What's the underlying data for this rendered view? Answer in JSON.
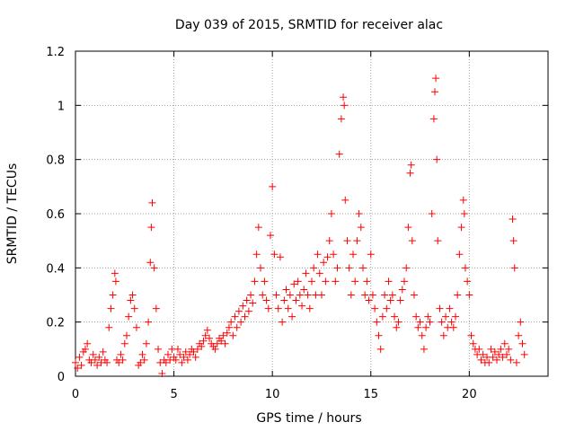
{
  "chart_data": {
    "type": "scatter",
    "title": "Day 039 of 2015, SRMTID for receiver alac",
    "xlabel": "GPS time / hours",
    "ylabel": "SRMTID / TECUs",
    "xlim": [
      0,
      24
    ],
    "ylim": [
      0,
      1.2
    ],
    "xticks": [
      0,
      5,
      10,
      15,
      20
    ],
    "yticks": [
      0,
      0.2,
      0.4,
      0.6,
      0.8,
      1,
      1.2
    ],
    "xtick_labels": [
      "0",
      "5",
      "10",
      "15",
      "20"
    ],
    "ytick_labels": [
      "0",
      "0.2",
      "0.4",
      "0.6",
      "0.8",
      "1",
      "1.2"
    ],
    "grid": true,
    "marker": "+",
    "series": [
      {
        "name": "SRMTID",
        "color": "#ff0000",
        "points": [
          [
            0.0,
            0.05
          ],
          [
            0.1,
            0.03
          ],
          [
            0.2,
            0.07
          ],
          [
            0.3,
            0.04
          ],
          [
            0.4,
            0.09
          ],
          [
            0.5,
            0.1
          ],
          [
            0.6,
            0.12
          ],
          [
            0.7,
            0.06
          ],
          [
            0.8,
            0.05
          ],
          [
            0.9,
            0.08
          ],
          [
            1.0,
            0.06
          ],
          [
            1.1,
            0.04
          ],
          [
            1.2,
            0.07
          ],
          [
            1.3,
            0.05
          ],
          [
            1.4,
            0.09
          ],
          [
            1.5,
            0.06
          ],
          [
            1.6,
            0.05
          ],
          [
            1.7,
            0.18
          ],
          [
            1.8,
            0.25
          ],
          [
            1.9,
            0.3
          ],
          [
            2.0,
            0.38
          ],
          [
            2.05,
            0.35
          ],
          [
            2.1,
            0.06
          ],
          [
            2.2,
            0.05
          ],
          [
            2.3,
            0.08
          ],
          [
            2.4,
            0.06
          ],
          [
            2.5,
            0.12
          ],
          [
            2.6,
            0.15
          ],
          [
            2.7,
            0.22
          ],
          [
            2.8,
            0.28
          ],
          [
            2.9,
            0.3
          ],
          [
            3.0,
            0.25
          ],
          [
            3.1,
            0.18
          ],
          [
            3.2,
            0.04
          ],
          [
            3.3,
            0.05
          ],
          [
            3.4,
            0.08
          ],
          [
            3.5,
            0.06
          ],
          [
            3.6,
            0.12
          ],
          [
            3.7,
            0.2
          ],
          [
            3.8,
            0.42
          ],
          [
            3.85,
            0.55
          ],
          [
            3.9,
            0.64
          ],
          [
            4.0,
            0.4
          ],
          [
            4.1,
            0.25
          ],
          [
            4.2,
            0.1
          ],
          [
            4.3,
            0.05
          ],
          [
            4.4,
            0.01
          ],
          [
            4.5,
            0.06
          ],
          [
            4.6,
            0.05
          ],
          [
            4.7,
            0.08
          ],
          [
            4.8,
            0.06
          ],
          [
            4.9,
            0.1
          ],
          [
            5.0,
            0.07
          ],
          [
            5.1,
            0.06
          ],
          [
            5.2,
            0.1
          ],
          [
            5.3,
            0.08
          ],
          [
            5.4,
            0.05
          ],
          [
            5.5,
            0.07
          ],
          [
            5.6,
            0.09
          ],
          [
            5.7,
            0.06
          ],
          [
            5.8,
            0.08
          ],
          [
            5.9,
            0.1
          ],
          [
            6.0,
            0.09
          ],
          [
            6.1,
            0.07
          ],
          [
            6.2,
            0.1
          ],
          [
            6.3,
            0.12
          ],
          [
            6.4,
            0.11
          ],
          [
            6.5,
            0.13
          ],
          [
            6.6,
            0.15
          ],
          [
            6.7,
            0.17
          ],
          [
            6.8,
            0.14
          ],
          [
            6.9,
            0.12
          ],
          [
            7.0,
            0.11
          ],
          [
            7.1,
            0.1
          ],
          [
            7.2,
            0.12
          ],
          [
            7.3,
            0.14
          ],
          [
            7.4,
            0.13
          ],
          [
            7.5,
            0.15
          ],
          [
            7.6,
            0.12
          ],
          [
            7.7,
            0.16
          ],
          [
            7.8,
            0.18
          ],
          [
            7.9,
            0.2
          ],
          [
            8.0,
            0.15
          ],
          [
            8.1,
            0.22
          ],
          [
            8.2,
            0.18
          ],
          [
            8.3,
            0.24
          ],
          [
            8.4,
            0.2
          ],
          [
            8.5,
            0.26
          ],
          [
            8.6,
            0.22
          ],
          [
            8.7,
            0.28
          ],
          [
            8.8,
            0.24
          ],
          [
            8.9,
            0.3
          ],
          [
            9.0,
            0.27
          ],
          [
            9.1,
            0.35
          ],
          [
            9.2,
            0.45
          ],
          [
            9.3,
            0.55
          ],
          [
            9.4,
            0.4
          ],
          [
            9.5,
            0.3
          ],
          [
            9.6,
            0.35
          ],
          [
            9.7,
            0.28
          ],
          [
            9.8,
            0.25
          ],
          [
            9.9,
            0.52
          ],
          [
            10.0,
            0.7
          ],
          [
            10.1,
            0.45
          ],
          [
            10.2,
            0.3
          ],
          [
            10.3,
            0.25
          ],
          [
            10.4,
            0.44
          ],
          [
            10.5,
            0.2
          ],
          [
            10.6,
            0.28
          ],
          [
            10.7,
            0.32
          ],
          [
            10.8,
            0.25
          ],
          [
            10.9,
            0.3
          ],
          [
            11.0,
            0.22
          ],
          [
            11.1,
            0.34
          ],
          [
            11.2,
            0.28
          ],
          [
            11.3,
            0.35
          ],
          [
            11.4,
            0.3
          ],
          [
            11.5,
            0.26
          ],
          [
            11.6,
            0.32
          ],
          [
            11.7,
            0.38
          ],
          [
            11.8,
            0.3
          ],
          [
            11.9,
            0.25
          ],
          [
            12.0,
            0.35
          ],
          [
            12.1,
            0.4
          ],
          [
            12.2,
            0.3
          ],
          [
            12.3,
            0.45
          ],
          [
            12.4,
            0.38
          ],
          [
            12.5,
            0.3
          ],
          [
            12.6,
            0.42
          ],
          [
            12.7,
            0.35
          ],
          [
            12.8,
            0.44
          ],
          [
            12.9,
            0.5
          ],
          [
            13.0,
            0.6
          ],
          [
            13.1,
            0.45
          ],
          [
            13.2,
            0.35
          ],
          [
            13.3,
            0.4
          ],
          [
            13.4,
            0.82
          ],
          [
            13.5,
            0.95
          ],
          [
            13.6,
            1.03
          ],
          [
            13.65,
            1.0
          ],
          [
            13.7,
            0.65
          ],
          [
            13.8,
            0.5
          ],
          [
            13.9,
            0.4
          ],
          [
            14.0,
            0.3
          ],
          [
            14.1,
            0.45
          ],
          [
            14.2,
            0.35
          ],
          [
            14.3,
            0.5
          ],
          [
            14.4,
            0.6
          ],
          [
            14.5,
            0.55
          ],
          [
            14.6,
            0.4
          ],
          [
            14.7,
            0.3
          ],
          [
            14.8,
            0.35
          ],
          [
            14.9,
            0.28
          ],
          [
            15.0,
            0.45
          ],
          [
            15.1,
            0.3
          ],
          [
            15.2,
            0.25
          ],
          [
            15.3,
            0.2
          ],
          [
            15.4,
            0.15
          ],
          [
            15.5,
            0.1
          ],
          [
            15.6,
            0.22
          ],
          [
            15.7,
            0.3
          ],
          [
            15.8,
            0.25
          ],
          [
            15.9,
            0.35
          ],
          [
            16.0,
            0.28
          ],
          [
            16.1,
            0.3
          ],
          [
            16.2,
            0.22
          ],
          [
            16.3,
            0.18
          ],
          [
            16.4,
            0.2
          ],
          [
            16.5,
            0.28
          ],
          [
            16.6,
            0.32
          ],
          [
            16.7,
            0.35
          ],
          [
            16.8,
            0.4
          ],
          [
            16.9,
            0.55
          ],
          [
            17.0,
            0.75
          ],
          [
            17.05,
            0.78
          ],
          [
            17.1,
            0.5
          ],
          [
            17.2,
            0.3
          ],
          [
            17.3,
            0.22
          ],
          [
            17.4,
            0.18
          ],
          [
            17.5,
            0.2
          ],
          [
            17.6,
            0.15
          ],
          [
            17.7,
            0.1
          ],
          [
            17.8,
            0.18
          ],
          [
            17.9,
            0.22
          ],
          [
            18.0,
            0.2
          ],
          [
            18.1,
            0.6
          ],
          [
            18.2,
            0.95
          ],
          [
            18.25,
            1.05
          ],
          [
            18.3,
            1.1
          ],
          [
            18.35,
            0.8
          ],
          [
            18.4,
            0.5
          ],
          [
            18.5,
            0.25
          ],
          [
            18.6,
            0.2
          ],
          [
            18.7,
            0.15
          ],
          [
            18.8,
            0.22
          ],
          [
            18.9,
            0.18
          ],
          [
            19.0,
            0.25
          ],
          [
            19.1,
            0.2
          ],
          [
            19.2,
            0.18
          ],
          [
            19.3,
            0.22
          ],
          [
            19.4,
            0.3
          ],
          [
            19.5,
            0.45
          ],
          [
            19.6,
            0.55
          ],
          [
            19.7,
            0.65
          ],
          [
            19.75,
            0.6
          ],
          [
            19.8,
            0.4
          ],
          [
            19.9,
            0.35
          ],
          [
            20.0,
            0.3
          ],
          [
            20.1,
            0.15
          ],
          [
            20.2,
            0.12
          ],
          [
            20.3,
            0.1
          ],
          [
            20.4,
            0.08
          ],
          [
            20.5,
            0.1
          ],
          [
            20.6,
            0.06
          ],
          [
            20.7,
            0.08
          ],
          [
            20.8,
            0.05
          ],
          [
            20.9,
            0.07
          ],
          [
            21.0,
            0.05
          ],
          [
            21.1,
            0.1
          ],
          [
            21.2,
            0.07
          ],
          [
            21.3,
            0.09
          ],
          [
            21.4,
            0.06
          ],
          [
            21.5,
            0.08
          ],
          [
            21.6,
            0.1
          ],
          [
            21.7,
            0.07
          ],
          [
            21.8,
            0.12
          ],
          [
            21.9,
            0.08
          ],
          [
            22.0,
            0.1
          ],
          [
            22.1,
            0.06
          ],
          [
            22.2,
            0.58
          ],
          [
            22.25,
            0.5
          ],
          [
            22.3,
            0.4
          ],
          [
            22.4,
            0.05
          ],
          [
            22.5,
            0.15
          ],
          [
            22.6,
            0.2
          ],
          [
            22.7,
            0.12
          ],
          [
            22.8,
            0.08
          ]
        ]
      }
    ]
  }
}
